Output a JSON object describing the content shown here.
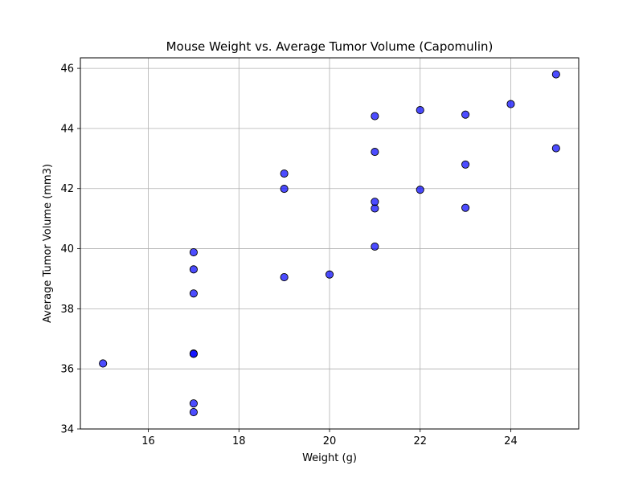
{
  "chart_data": {
    "type": "scatter",
    "title": "Mouse Weight vs. Average Tumor Volume (Capomulin)",
    "xlabel": "Weight (g)",
    "ylabel": "Average Tumor Volume (mm3)",
    "xlim": [
      14.5,
      25.5
    ],
    "ylim": [
      34,
      46.35
    ],
    "xticks": [
      16,
      18,
      20,
      22,
      24
    ],
    "yticks": [
      34,
      36,
      38,
      40,
      42,
      44,
      46
    ],
    "grid": true,
    "marker_fill": "#0000ff",
    "marker_fill_opacity": 0.7,
    "marker_edge": "#000000",
    "grid_color": "#b0b0b0",
    "points": [
      {
        "x": 15,
        "y": 36.18
      },
      {
        "x": 17,
        "y": 34.56
      },
      {
        "x": 17,
        "y": 34.85
      },
      {
        "x": 17,
        "y": 36.51
      },
      {
        "x": 17,
        "y": 36.5
      },
      {
        "x": 17,
        "y": 38.51
      },
      {
        "x": 17,
        "y": 39.31
      },
      {
        "x": 17,
        "y": 39.88
      },
      {
        "x": 19,
        "y": 39.05
      },
      {
        "x": 19,
        "y": 41.99
      },
      {
        "x": 19,
        "y": 42.5
      },
      {
        "x": 20,
        "y": 39.14
      },
      {
        "x": 21,
        "y": 40.07
      },
      {
        "x": 21,
        "y": 41.34
      },
      {
        "x": 21,
        "y": 41.56
      },
      {
        "x": 21,
        "y": 43.22
      },
      {
        "x": 21,
        "y": 44.41
      },
      {
        "x": 22,
        "y": 41.96
      },
      {
        "x": 22,
        "y": 44.61
      },
      {
        "x": 23,
        "y": 41.36
      },
      {
        "x": 23,
        "y": 42.8
      },
      {
        "x": 23,
        "y": 44.46
      },
      {
        "x": 24,
        "y": 44.81
      },
      {
        "x": 25,
        "y": 43.34
      },
      {
        "x": 25,
        "y": 45.8
      }
    ]
  }
}
